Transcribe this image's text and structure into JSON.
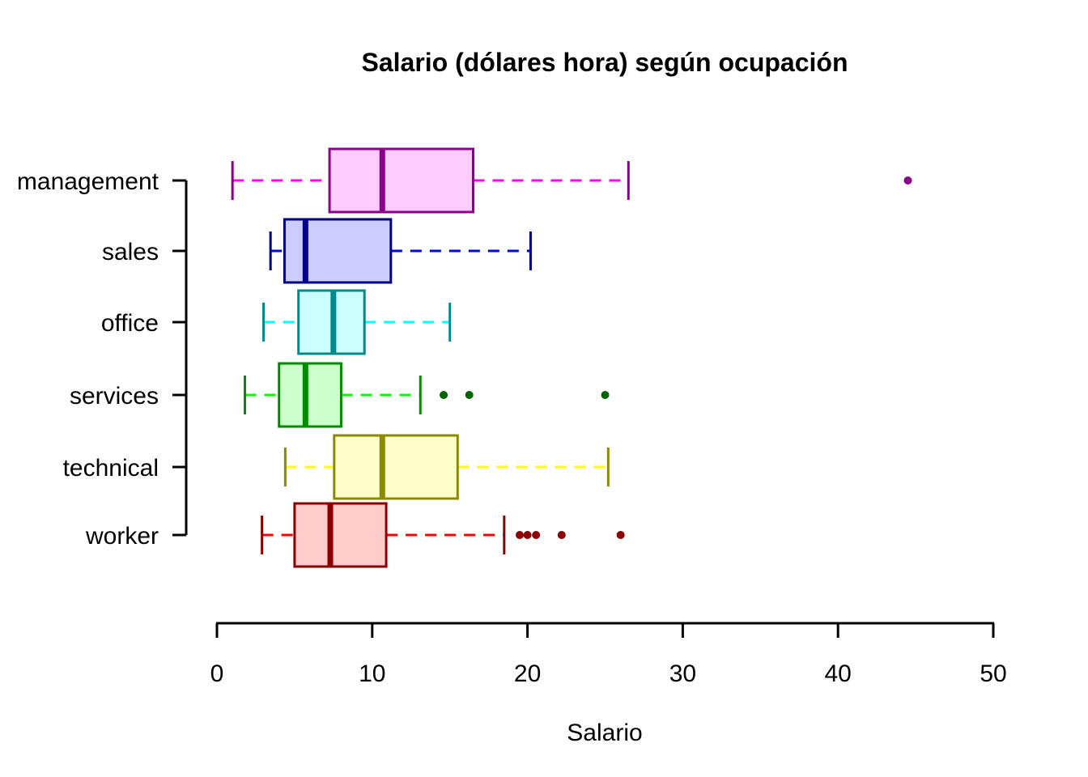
{
  "chart_data": {
    "type": "boxplot",
    "orientation": "horizontal",
    "title": "Salario (dólares hora) según ocupación",
    "xlabel": "Salario",
    "xlim": [
      0,
      50
    ],
    "xticks": [
      0,
      10,
      20,
      30,
      40,
      50
    ],
    "grid": false,
    "legend": "none",
    "categories": [
      "management",
      "sales",
      "office",
      "services",
      "technical",
      "worker"
    ],
    "series": [
      {
        "name": "management",
        "whisker_low": 1.0,
        "q1": 7.25,
        "median": 10.65,
        "q3": 16.5,
        "whisker_high": 26.5,
        "outliers": [
          44.5
        ],
        "fill": "#FFCCFF",
        "stroke": "#8B008B",
        "whisker_color": "#FF00FF",
        "outlier_color": "#8B008B"
      },
      {
        "name": "sales",
        "whisker_low": 3.45,
        "q1": 4.35,
        "median": 5.7,
        "q3": 11.2,
        "whisker_high": 20.2,
        "outliers": [],
        "fill": "#CCCCFF",
        "stroke": "#00008B",
        "whisker_color": "#0000FF",
        "outlier_color": "#00008B"
      },
      {
        "name": "office",
        "whisker_low": 3.0,
        "q1": 5.25,
        "median": 7.5,
        "q3": 9.5,
        "whisker_high": 15.0,
        "outliers": [],
        "fill": "#CCFFFF",
        "stroke": "#008B8B",
        "whisker_color": "#00FFFF",
        "outlier_color": "#008B8B"
      },
      {
        "name": "services",
        "whisker_low": 1.8,
        "q1": 4.0,
        "median": 5.7,
        "q3": 8.0,
        "whisker_high": 13.1,
        "outliers": [
          14.6,
          16.25,
          25.0
        ],
        "fill": "#CCFFCC",
        "stroke": "#008B00",
        "whisker_color": "#00FF00",
        "outlier_color": "#006400"
      },
      {
        "name": "technical",
        "whisker_low": 4.4,
        "q1": 7.55,
        "median": 10.65,
        "q3": 15.5,
        "whisker_high": 25.2,
        "outliers": [],
        "fill": "#FFFFCC",
        "stroke": "#8B8B00",
        "whisker_color": "#FFFF00",
        "outlier_color": "#8B8B00"
      },
      {
        "name": "worker",
        "whisker_low": 2.9,
        "q1": 5.0,
        "median": 7.3,
        "q3": 10.9,
        "whisker_high": 18.5,
        "outliers": [
          19.5,
          20.0,
          20.55,
          22.2,
          26.0
        ],
        "fill": "#FFCCCC",
        "stroke": "#8B0000",
        "whisker_color": "#FF0000",
        "outlier_color": "#8B0000"
      }
    ],
    "colors": {
      "axis": "#000000",
      "text": "#000000",
      "background": "#FFFFFF"
    }
  }
}
